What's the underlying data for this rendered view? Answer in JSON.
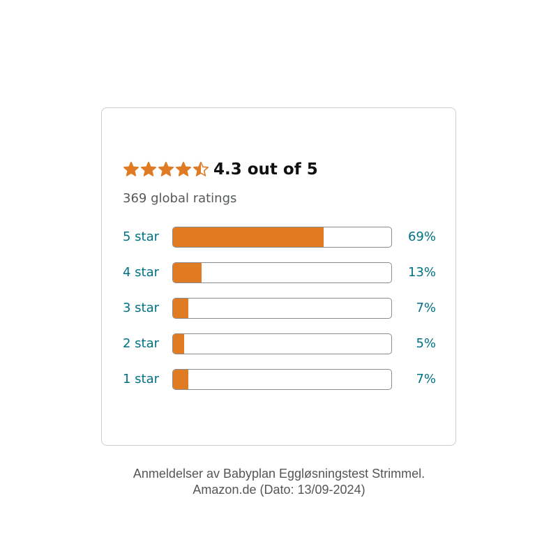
{
  "card": {
    "rating_text": "4.3 out of 5",
    "total_ratings": "369 global ratings"
  },
  "colors": {
    "star": "#e07b24",
    "bar_fill": "#e07b24",
    "link_text": "#007185",
    "heading_text": "#0f1111"
  },
  "caption": {
    "line1": "Anmeldelser av Babyplan Eggløsningstest Strimmel.",
    "line2": "Amazon.de (Dato: 13/09-2024)"
  },
  "chart_data": {
    "type": "bar",
    "orientation": "horizontal",
    "average_rating": 4.3,
    "max_rating": 5,
    "categories": [
      "5 star",
      "4 star",
      "3 star",
      "2 star",
      "1 star"
    ],
    "values": [
      69,
      13,
      7,
      5,
      7
    ],
    "value_labels": [
      "69%",
      "13%",
      "7%",
      "5%",
      "7%"
    ],
    "xlim": [
      0,
      100
    ]
  }
}
